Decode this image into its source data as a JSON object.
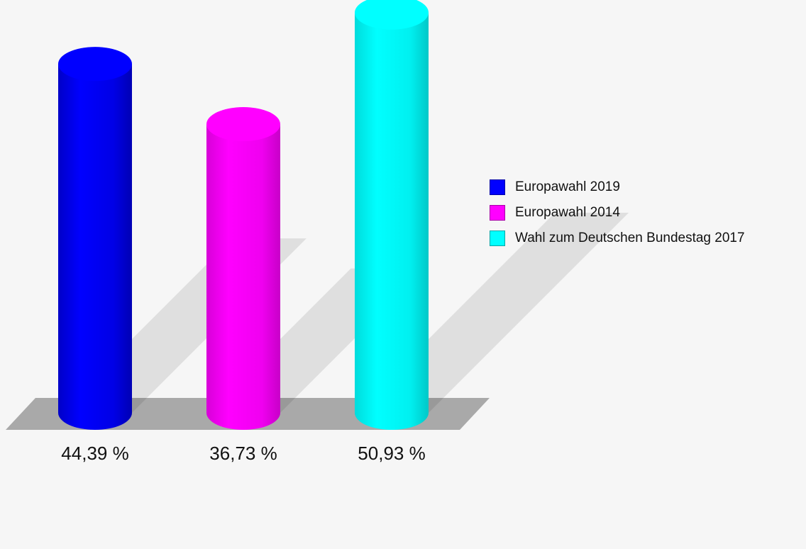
{
  "chart_data": {
    "type": "bar",
    "categories": [
      "Europawahl 2019",
      "Europawahl 2014",
      "Wahl zum Deutschen Bundestag 2017"
    ],
    "values": [
      44.39,
      36.73,
      50.93
    ],
    "value_labels": [
      "44,39 %",
      "36,73 %",
      "50,93 %"
    ],
    "colors": [
      "#0000ff",
      "#ff00ff",
      "#00ffff"
    ],
    "unit": "%",
    "legend_position": "right",
    "style": "3d-cylinder",
    "grid": false
  }
}
